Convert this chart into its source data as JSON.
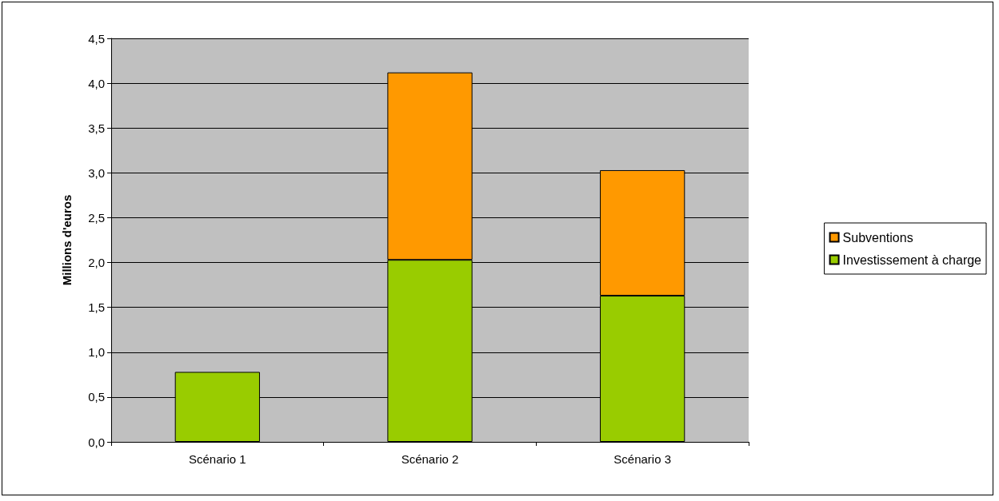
{
  "chart_data": {
    "type": "bar",
    "ylabel": "Millions d'euros",
    "categories": [
      "Scénario 1",
      "Scénario 2",
      "Scénario 3"
    ],
    "stacked": true,
    "series": [
      {
        "name": "Investissement à charge",
        "color": "#99cc00",
        "values": [
          0.78,
          2.03,
          1.63
        ]
      },
      {
        "name": "Subventions",
        "color": "#ff9900",
        "values": [
          null,
          2.09,
          1.4
        ]
      }
    ],
    "ylim": [
      0,
      4.5
    ],
    "yticks": [
      {
        "value": 0,
        "label": "0,0"
      },
      {
        "value": 0.5,
        "label": "0,5"
      },
      {
        "value": 1,
        "label": "1,0"
      },
      {
        "value": 1.5,
        "label": "1,5"
      },
      {
        "value": 2,
        "label": "2,0"
      },
      {
        "value": 2.5,
        "label": "2,5"
      },
      {
        "value": 3,
        "label": "3,0"
      },
      {
        "value": 3.5,
        "label": "3,5"
      },
      {
        "value": 4,
        "label": "4,0"
      },
      {
        "value": 4.5,
        "label": "4,5"
      }
    ],
    "grid": "y",
    "legend": "right"
  }
}
